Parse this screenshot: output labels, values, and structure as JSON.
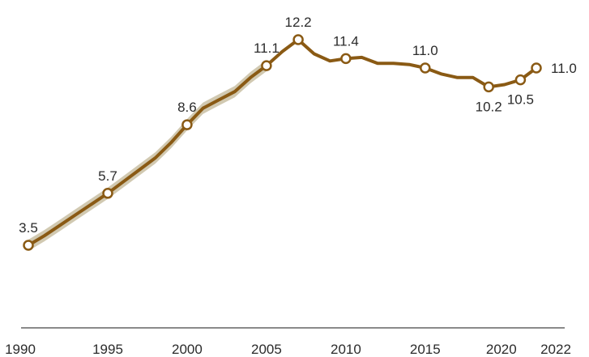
{
  "chart_data": {
    "type": "line",
    "title": "",
    "xlabel": "",
    "ylabel": "",
    "x_ticks": [
      "1990",
      "1995",
      "2000",
      "2005",
      "2010",
      "2015",
      "2020",
      "2022"
    ],
    "xlim": [
      1990,
      2022
    ],
    "ylim": [
      0,
      13
    ],
    "grid": false,
    "colors": {
      "line": "#8a5a14",
      "band": "#c9bfa3",
      "axis": "#8a8a8a",
      "marker_fill": "#ffffff"
    },
    "series": [
      {
        "values": [
          {
            "x": 1990,
            "y": 3.5
          },
          {
            "x": 1991,
            "y": 3.9
          },
          {
            "x": 1992,
            "y": 4.35
          },
          {
            "x": 1993,
            "y": 4.8
          },
          {
            "x": 1994,
            "y": 5.25
          },
          {
            "x": 1995,
            "y": 5.7
          },
          {
            "x": 1996,
            "y": 6.2
          },
          {
            "x": 1997,
            "y": 6.7
          },
          {
            "x": 1998,
            "y": 7.2
          },
          {
            "x": 1999,
            "y": 7.85
          },
          {
            "x": 2000,
            "y": 8.6
          },
          {
            "x": 2001,
            "y": 9.3
          },
          {
            "x": 2002,
            "y": 9.65
          },
          {
            "x": 2003,
            "y": 10.0
          },
          {
            "x": 2004,
            "y": 10.6
          },
          {
            "x": 2005,
            "y": 11.1
          },
          {
            "x": 2006,
            "y": 11.7
          },
          {
            "x": 2007,
            "y": 12.2
          },
          {
            "x": 2008,
            "y": 11.6
          },
          {
            "x": 2009,
            "y": 11.3
          },
          {
            "x": 2010,
            "y": 11.4
          },
          {
            "x": 2011,
            "y": 11.45
          },
          {
            "x": 2012,
            "y": 11.2
          },
          {
            "x": 2013,
            "y": 11.2
          },
          {
            "x": 2014,
            "y": 11.15
          },
          {
            "x": 2015,
            "y": 11.0
          },
          {
            "x": 2016,
            "y": 10.75
          },
          {
            "x": 2017,
            "y": 10.6
          },
          {
            "x": 2018,
            "y": 10.6
          },
          {
            "x": 2019,
            "y": 10.2
          },
          {
            "x": 2020,
            "y": 10.3
          },
          {
            "x": 2021,
            "y": 10.5
          },
          {
            "x": 2022,
            "y": 11.0
          }
        ],
        "band_until": 2005
      }
    ],
    "annotations": [
      {
        "x": 1990,
        "y": 3.5,
        "text": "3.5",
        "pos": "above"
      },
      {
        "x": 1995,
        "y": 5.7,
        "text": "5.7",
        "pos": "above"
      },
      {
        "x": 2000,
        "y": 8.6,
        "text": "8.6",
        "pos": "above"
      },
      {
        "x": 2005,
        "y": 11.1,
        "text": "11.1",
        "pos": "above"
      },
      {
        "x": 2007,
        "y": 12.2,
        "text": "12.2",
        "pos": "above"
      },
      {
        "x": 2010,
        "y": 11.4,
        "text": "11.4",
        "pos": "above"
      },
      {
        "x": 2015,
        "y": 11.0,
        "text": "11.0",
        "pos": "above"
      },
      {
        "x": 2019,
        "y": 10.2,
        "text": "10.2",
        "pos": "below"
      },
      {
        "x": 2021,
        "y": 10.5,
        "text": "10.5",
        "pos": "below"
      },
      {
        "x": 2022,
        "y": 11.0,
        "text": "11.0",
        "pos": "right"
      }
    ]
  }
}
